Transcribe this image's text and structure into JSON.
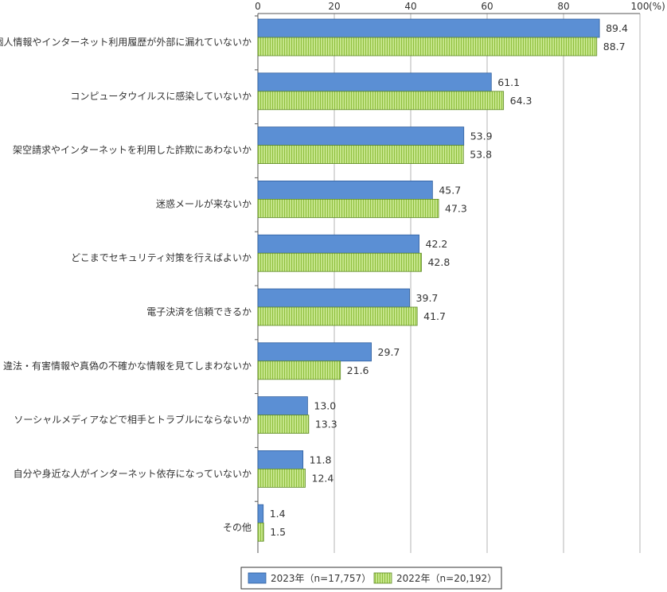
{
  "chart_data": {
    "type": "bar",
    "orientation": "horizontal",
    "unit": "(%)",
    "categories": [
      "個人情報やインターネット利用履歴が外部に漏れていないか",
      "コンピュータウイルスに感染していないか",
      "架空請求やインターネットを利用した詐欺にあわないか",
      "迷惑メールが来ないか",
      "どこまでセキュリティ対策を行えばよいか",
      "電子決済を信頼できるか",
      "違法・有害情報や真偽の不確かな情報を見てしまわないか",
      "ソーシャルメディアなどで相手とトラブルにならないか",
      "自分や身近な人がインターネット依存になっていないか",
      "その他"
    ],
    "series": [
      {
        "name": "2023年（n=17,757）",
        "color": "#5b8fd4",
        "values": [
          89.4,
          61.1,
          53.9,
          45.7,
          42.2,
          39.7,
          29.7,
          13.0,
          11.8,
          1.4
        ],
        "labels": [
          "89.4",
          "61.1",
          "53.9",
          "45.7",
          "42.2",
          "39.7",
          "29.7",
          "13.0",
          "11.8",
          "1.4"
        ]
      },
      {
        "name": "2022年（n=20,192）",
        "color": "#c5e58a",
        "values": [
          88.7,
          64.3,
          53.8,
          47.3,
          42.8,
          41.7,
          21.6,
          13.3,
          12.4,
          1.5
        ],
        "labels": [
          "88.7",
          "64.3",
          "53.8",
          "47.3",
          "42.8",
          "41.7",
          "21.6",
          "13.3",
          "12.4",
          "1.5"
        ]
      }
    ],
    "xlim": [
      0,
      100
    ],
    "ticks": [
      "0",
      "20",
      "40",
      "60",
      "80",
      "100"
    ],
    "grid": true,
    "legend_position": "bottom-right"
  }
}
